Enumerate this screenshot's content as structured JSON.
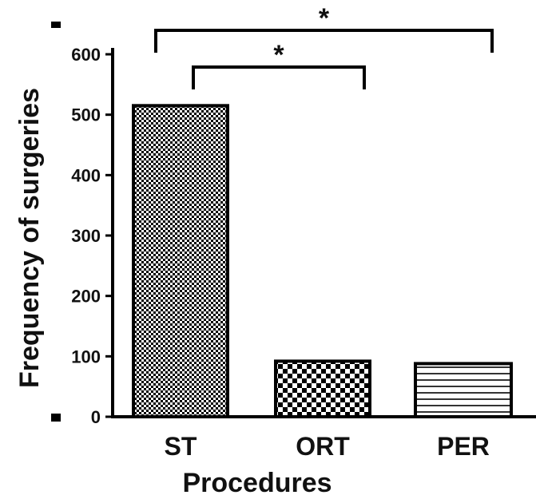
{
  "chart_data": {
    "type": "bar",
    "categories": [
      "ST",
      "ORT",
      "PER"
    ],
    "values": [
      515,
      92,
      88
    ],
    "xlabel": "Procedures",
    "ylabel": "Frequency of surgeries",
    "ylim": [
      0,
      600
    ],
    "yticks": [
      0,
      100,
      200,
      300,
      400,
      500,
      600
    ],
    "patterns": [
      "fine-checker",
      "coarse-checker",
      "horizontal-lines"
    ],
    "significance": [
      {
        "from": "ST",
        "to": "ORT",
        "label": "*"
      },
      {
        "from": "ST",
        "to": "PER",
        "label": "*"
      }
    ],
    "grid": false,
    "colors": {
      "bar_stroke": "#000000",
      "bar_fill": "#ffffff",
      "pattern": "#000000"
    }
  }
}
